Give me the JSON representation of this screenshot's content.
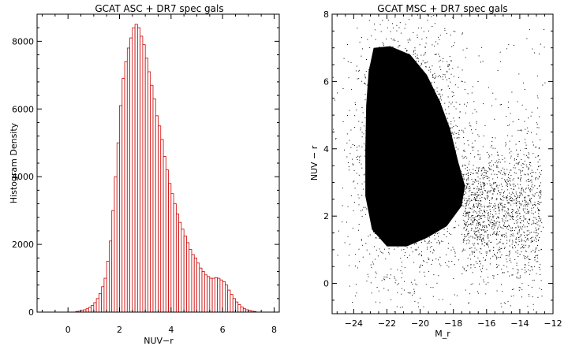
{
  "chart_data": [
    {
      "type": "bar",
      "title": "GCAT ASC + DR7 spec gals",
      "xlabel": "NUV−r",
      "ylabel": "Histogram Density",
      "xlim": [
        -1.2,
        8.2
      ],
      "ylim": [
        0,
        8800
      ],
      "xticks": [
        0,
        2,
        4,
        6,
        8
      ],
      "yticks": [
        0,
        2000,
        4000,
        6000,
        8000
      ],
      "bar_color": "#cc0000",
      "x": [
        0.3,
        0.4,
        0.5,
        0.6,
        0.7,
        0.8,
        0.9,
        1.0,
        1.1,
        1.2,
        1.3,
        1.4,
        1.5,
        1.6,
        1.7,
        1.8,
        1.9,
        2.0,
        2.1,
        2.2,
        2.3,
        2.4,
        2.5,
        2.6,
        2.7,
        2.8,
        2.9,
        3.0,
        3.1,
        3.2,
        3.3,
        3.4,
        3.5,
        3.6,
        3.7,
        3.8,
        3.9,
        4.0,
        4.1,
        4.2,
        4.3,
        4.4,
        4.5,
        4.6,
        4.7,
        4.8,
        4.9,
        5.0,
        5.1,
        5.2,
        5.3,
        5.4,
        5.5,
        5.6,
        5.7,
        5.8,
        5.9,
        6.0,
        6.1,
        6.2,
        6.3,
        6.4,
        6.5,
        6.6,
        6.7,
        6.8,
        6.9,
        7.0,
        7.1,
        7.2
      ],
      "values": [
        20,
        30,
        50,
        70,
        100,
        140,
        200,
        280,
        400,
        550,
        750,
        1000,
        1500,
        2100,
        3000,
        4000,
        5000,
        6100,
        6900,
        7400,
        7800,
        8100,
        8400,
        8500,
        8400,
        8150,
        7900,
        7500,
        7100,
        6700,
        6300,
        5800,
        5500,
        5100,
        4600,
        4200,
        3800,
        3500,
        3200,
        2900,
        2650,
        2450,
        2250,
        2050,
        1850,
        1700,
        1600,
        1450,
        1300,
        1200,
        1100,
        1050,
        1000,
        1000,
        1020,
        1000,
        950,
        900,
        800,
        650,
        520,
        400,
        300,
        220,
        150,
        100,
        70,
        50,
        30,
        20
      ]
    },
    {
      "type": "scatter",
      "title": "GCAT MSC + DR7 spec gals",
      "xlabel": "M_r",
      "ylabel": "NUV − r",
      "xlim": [
        -25.3,
        -12
      ],
      "ylim": [
        -0.9,
        8
      ],
      "xticks": [
        -24,
        -22,
        -20,
        -18,
        -16,
        -14,
        -12
      ],
      "yticks": [
        0,
        2,
        4,
        6,
        8
      ],
      "point_color": "#000000",
      "dense_region": "-23.3 to -17.5 in M_r, 1 to 7 in NUV − r",
      "sparse_tail": "-17.5 to -13 in M_r, 0.5 to 4 in NUV − r"
    }
  ]
}
